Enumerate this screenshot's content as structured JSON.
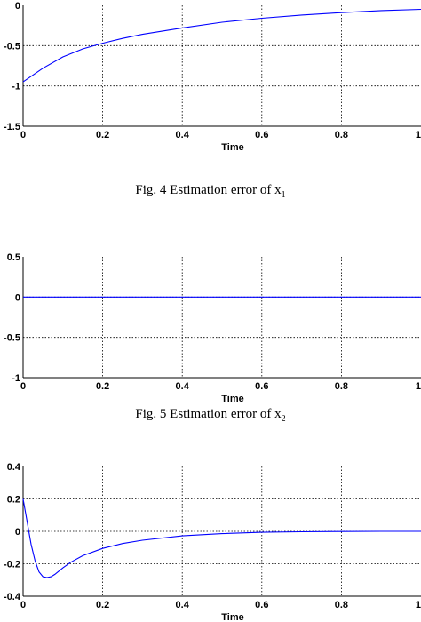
{
  "chart_data": [
    {
      "type": "line",
      "xlabel": "Time",
      "xlim": [
        0,
        1
      ],
      "ylim": [
        -1.5,
        0
      ],
      "xticks": [
        "0",
        "0.2",
        "0.4",
        "0.6",
        "0.8",
        "1"
      ],
      "yticks": [
        "0",
        "-0.5",
        "-1",
        "-1.5"
      ],
      "ytick_values": [
        0,
        -0.5,
        -1,
        -1.5
      ],
      "grid": true,
      "series": [
        {
          "color": "#0000ff",
          "x": [
            0,
            0.05,
            0.1,
            0.15,
            0.2,
            0.25,
            0.3,
            0.4,
            0.5,
            0.6,
            0.7,
            0.8,
            0.9,
            1.0
          ],
          "y": [
            -0.95,
            -0.78,
            -0.64,
            -0.54,
            -0.47,
            -0.41,
            -0.36,
            -0.28,
            -0.21,
            -0.16,
            -0.12,
            -0.09,
            -0.065,
            -0.05
          ]
        }
      ],
      "caption": {
        "text": "Fig. 4 Estimation error of x",
        "subscript": "1"
      }
    },
    {
      "type": "line",
      "xlabel": "Time",
      "xlim": [
        0,
        1
      ],
      "ylim": [
        -1,
        0.5
      ],
      "xticks": [
        "0",
        "0.2",
        "0.4",
        "0.6",
        "0.8",
        "1"
      ],
      "yticks": [
        "0.5",
        "0",
        "-0.5",
        "-1"
      ],
      "ytick_values": [
        0.5,
        0,
        -0.5,
        -1
      ],
      "grid": true,
      "series": [
        {
          "color": "#0000ff",
          "x": [
            0,
            0.5,
            1.0
          ],
          "y": [
            0,
            0,
            0
          ]
        }
      ],
      "caption": {
        "text": "Fig. 5 Estimation error of x",
        "subscript": "2"
      }
    },
    {
      "type": "line",
      "xlabel": "Time",
      "xlim": [
        0,
        1
      ],
      "ylim": [
        -0.4,
        0.4
      ],
      "xticks": [
        "0",
        "0.2",
        "0.4",
        "0.6",
        "0.8",
        "1"
      ],
      "yticks": [
        "0.4",
        "0.2",
        "0",
        "-0.2",
        "-0.4"
      ],
      "ytick_values": [
        0.4,
        0.2,
        0,
        -0.2,
        -0.4
      ],
      "grid": true,
      "series": [
        {
          "color": "#0000ff",
          "x": [
            0,
            0.01,
            0.02,
            0.03,
            0.04,
            0.05,
            0.06,
            0.07,
            0.08,
            0.1,
            0.12,
            0.15,
            0.2,
            0.25,
            0.3,
            0.4,
            0.5,
            0.6,
            0.7,
            0.8,
            0.9,
            1.0
          ],
          "y": [
            0.2,
            0.06,
            -0.08,
            -0.18,
            -0.25,
            -0.28,
            -0.285,
            -0.28,
            -0.265,
            -0.225,
            -0.19,
            -0.15,
            -0.105,
            -0.075,
            -0.055,
            -0.028,
            -0.014,
            -0.006,
            -0.003,
            -0.001,
            0,
            0
          ]
        }
      ],
      "caption": null
    }
  ]
}
